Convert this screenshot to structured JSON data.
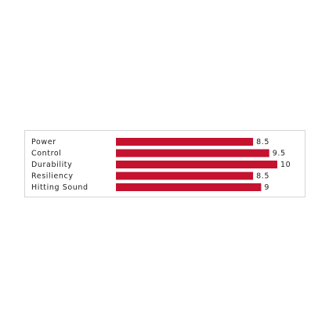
{
  "chart_data": {
    "type": "bar",
    "orientation": "horizontal",
    "categories": [
      "Power",
      "Control",
      "Durability",
      "Resiliency",
      "Hitting Sound"
    ],
    "values": [
      8.5,
      9.5,
      10,
      8.5,
      9
    ],
    "color": "#c4122f"
  }
}
